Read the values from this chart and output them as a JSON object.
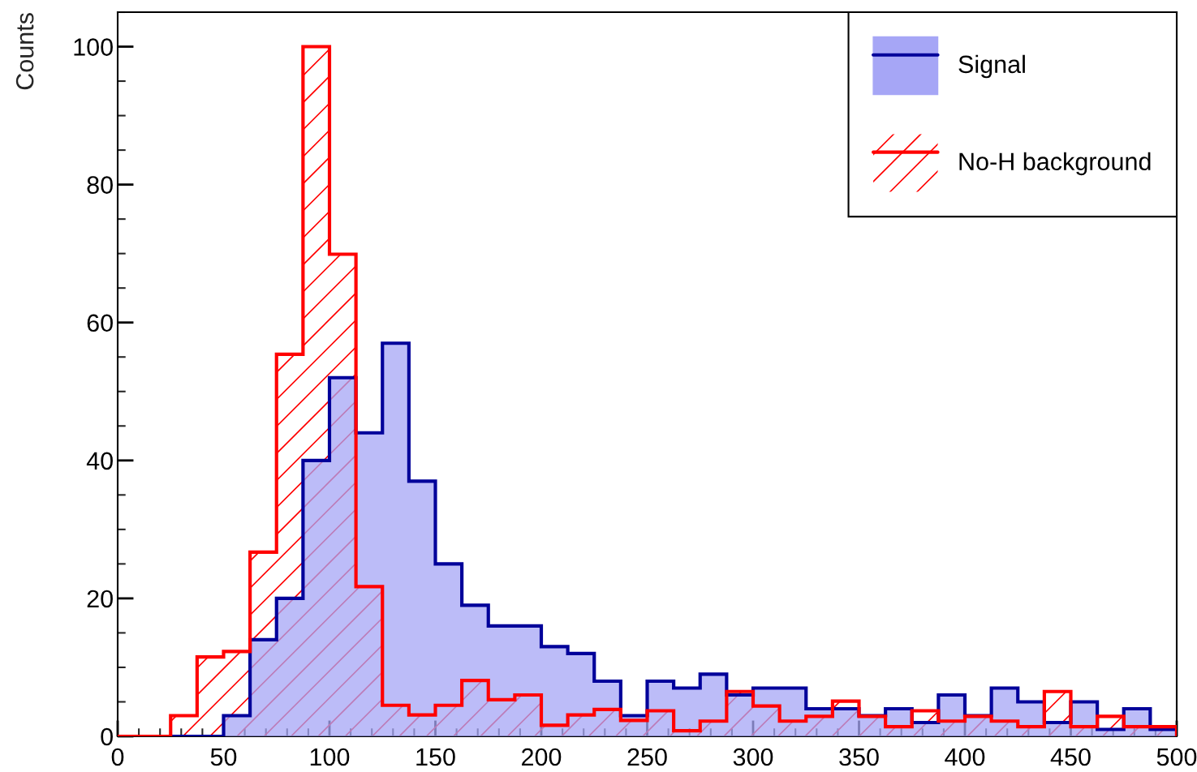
{
  "chart_data": {
    "type": "histogram",
    "ylabel": "Counts",
    "bins": [
      0,
      12.5,
      25,
      37.5,
      50,
      62.5,
      75,
      87.5,
      100,
      112.5,
      125,
      137.5,
      150,
      162.5,
      175,
      187.5,
      200,
      212.5,
      225,
      237.5,
      250,
      262.5,
      275,
      287.5,
      300,
      312.5,
      325,
      337.5,
      350,
      362.5,
      375,
      387.5,
      400,
      412.5,
      425,
      437.5,
      450,
      462.5,
      475,
      487.5,
      500
    ],
    "series": [
      {
        "name": "Signal",
        "color": "#a6a6f6",
        "values": [
          0,
          0,
          0,
          0,
          3,
          14,
          20,
          40,
          52,
          44,
          57,
          37,
          25,
          19,
          16,
          16,
          13,
          12,
          8,
          3,
          8,
          7,
          9,
          6,
          7,
          7,
          4,
          4,
          3,
          4,
          2,
          6,
          3,
          7,
          5,
          2,
          5,
          1,
          4,
          1
        ]
      },
      {
        "name": "No-H background",
        "color": "#ff0000",
        "values": [
          0,
          0,
          3,
          11.5,
          12.3,
          26.7,
          55.4,
          100,
          69.9,
          21.7,
          4.5,
          3.1,
          4.5,
          8.1,
          5.3,
          6.0,
          1.6,
          3.1,
          3.9,
          2.3,
          3.7,
          0.8,
          2.2,
          6.5,
          4.4,
          2.2,
          2.9,
          5.1,
          2.9,
          1.4,
          3.7,
          2.2,
          2.9,
          2.2,
          1.4,
          6.5,
          1.4,
          2.9,
          1.4,
          1.4
        ]
      }
    ],
    "xlim": [
      0,
      500
    ],
    "xticks": [
      0,
      50,
      100,
      150,
      200,
      250,
      300,
      350,
      400,
      450,
      500
    ],
    "ylim": [
      0,
      105
    ],
    "yticks": [
      0,
      20,
      40,
      60,
      80,
      100
    ],
    "legend": "top right",
    "grid": false
  }
}
